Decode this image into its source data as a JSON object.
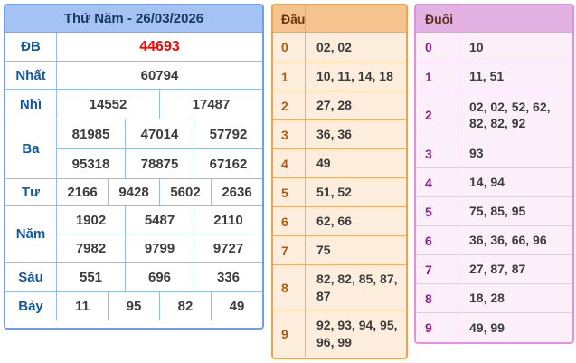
{
  "result_table": {
    "title": "Thứ Năm - 26/03/2026",
    "rows": [
      {
        "label": "ĐB",
        "cells": [
          "44693"
        ]
      },
      {
        "label": "Nhất",
        "cells": [
          "60794"
        ]
      },
      {
        "label": "Nhì",
        "cells": [
          "14552",
          "17487"
        ]
      },
      {
        "label": "Ba",
        "cells": [
          "81985",
          "47014",
          "57792",
          "95318",
          "78875",
          "67162"
        ]
      },
      {
        "label": "Tư",
        "cells": [
          "2166",
          "9428",
          "5602",
          "2636"
        ]
      },
      {
        "label": "Năm",
        "cells": [
          "1902",
          "5487",
          "2110",
          "7982",
          "9799",
          "9727"
        ]
      },
      {
        "label": "Sáu",
        "cells": [
          "551",
          "696",
          "336"
        ]
      },
      {
        "label": "Bảy",
        "cells": [
          "11",
          "95",
          "82",
          "49"
        ]
      }
    ]
  },
  "dau_table": {
    "header": "Đầu",
    "rows": [
      {
        "digit": "0",
        "values": "02, 02"
      },
      {
        "digit": "1",
        "values": "10, 11, 14, 18"
      },
      {
        "digit": "2",
        "values": "27, 28"
      },
      {
        "digit": "3",
        "values": "36, 36"
      },
      {
        "digit": "4",
        "values": "49"
      },
      {
        "digit": "5",
        "values": "51, 52"
      },
      {
        "digit": "6",
        "values": "62, 66"
      },
      {
        "digit": "7",
        "values": "75"
      },
      {
        "digit": "8",
        "values": "82, 82, 85, 87, 87"
      },
      {
        "digit": "9",
        "values": "92, 93, 94, 95, 96, 99"
      }
    ]
  },
  "duoi_table": {
    "header": "Đuôi",
    "rows": [
      {
        "digit": "0",
        "values": "10"
      },
      {
        "digit": "1",
        "values": "11, 51"
      },
      {
        "digit": "2",
        "values": "02, 02, 52, 62, 82, 82, 92"
      },
      {
        "digit": "3",
        "values": "93"
      },
      {
        "digit": "4",
        "values": "14, 94"
      },
      {
        "digit": "5",
        "values": "75, 85, 95"
      },
      {
        "digit": "6",
        "values": "36, 36, 66, 96"
      },
      {
        "digit": "7",
        "values": "27, 87, 87"
      },
      {
        "digit": "8",
        "values": "18, 28"
      },
      {
        "digit": "9",
        "values": "49, 99"
      }
    ]
  },
  "colors": {
    "special_prize": "#ff0000",
    "title_text": "#17375d",
    "label_blue": "#12599f",
    "blue_border": "#6d9eeb",
    "blue_header_bg": "#a4c2f4",
    "orange_border": "#eda356",
    "orange_header_bg": "#f6c38e",
    "orange_row_bg": "#fdeddc",
    "dau_header_text": "#6b3413",
    "dau_digit_text": "#b05a11",
    "pink_border": "#e78fdb",
    "pink_header_bg": "#e2b3e2",
    "pink_row_bg": "#fbf0fa",
    "duoi_header_text": "#5f2f17",
    "duoi_digit_text": "#951b95"
  }
}
